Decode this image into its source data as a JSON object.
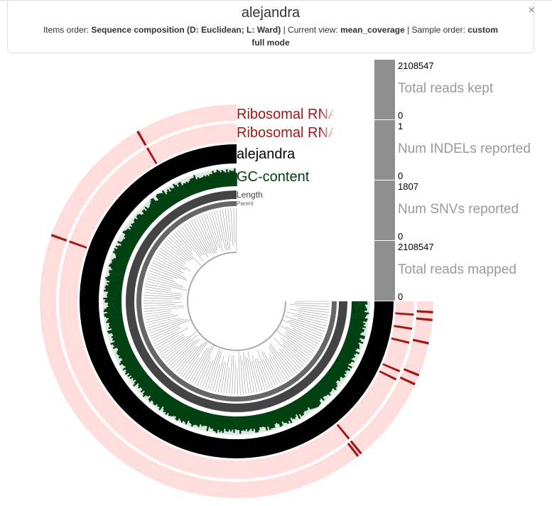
{
  "header": {
    "title": "alejandra",
    "items_order_label": "Items order:",
    "items_order_value": "Sequence composition (D: Euclidean; L: Ward)",
    "current_view_label": "| Current view:",
    "current_view_value": "mean_coverage",
    "sample_order_label": "| Sample order:",
    "sample_order_value": "custom",
    "mode": "full mode",
    "close": "×"
  },
  "layers": [
    {
      "name": "Ribosomal RNA",
      "color": "#a01818",
      "bg": "#ffdddd"
    },
    {
      "name": "Ribosomal RNA",
      "color": "#a01818",
      "bg": "#ffdddd"
    },
    {
      "name": "alejandra",
      "color": "#000000"
    },
    {
      "name": "GC-content",
      "color": "#004010",
      "bg": "#dde6e0"
    },
    {
      "name": "Length",
      "color": "#444444"
    },
    {
      "name": "Parent",
      "color": "#666666"
    }
  ],
  "bars": [
    {
      "label": "Total reads kept",
      "max": "2108547",
      "min": "0",
      "fraction": 1
    },
    {
      "label": "Num INDELs reported",
      "max": "1",
      "min": "0",
      "fraction": 1
    },
    {
      "label": "Num SNVs reported",
      "max": "1807",
      "min": "0",
      "fraction": 1
    },
    {
      "label": "Total reads mapped",
      "max": "2108547",
      "min": "0",
      "fraction": 1
    }
  ],
  "colors": {
    "bar": "#8f8f8f",
    "bar_text": "#999999"
  }
}
